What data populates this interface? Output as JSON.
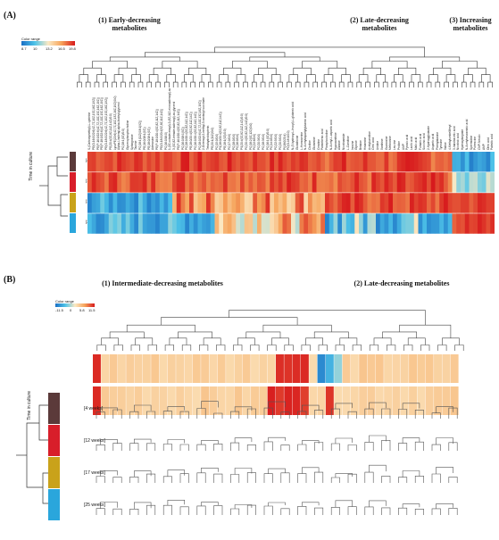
{
  "panelA": {
    "label": "(A)",
    "groups": [
      {
        "title": "(1) Early-decreasing metabolites"
      },
      {
        "title": "(2) Late-decreasing metabolites"
      },
      {
        "title": "(3) Increasing metabolites"
      }
    ],
    "color_range": {
      "title": "Color range",
      "ticks": [
        "8.7",
        "10",
        "13.2",
        "16.5",
        "19.8"
      ]
    },
    "time_title": "Time in culture",
    "rows": [
      "[4 weeks]",
      "[12 weeks]",
      "[17 weeks]",
      "[25 weeks]"
    ],
    "row_colors": [
      "#5b3a3a",
      "#d81e2a",
      "#c9a21a",
      "#2aa6dc"
    ],
    "metabolites": [
      "S-(Carboxymethyl)-L-cysteine",
      "PE(O-16:0/22:6(4Z,7Z,10Z,13Z,16Z,19Z))",
      "PE(P-16:0/22:6(4Z,7Z,10Z,13Z,16Z,19Z))",
      "PE(P-18:0/22:6(4Z,7Z,10Z,13Z,16Z,19Z))",
      "PE(O-18:0/22:6(4Z,7Z,10Z,13Z,16Z,19Z))",
      "PE(20:4(5Z,8Z,11Z,14Z)/0:0)",
      "LysoPE(22:6(4Z,7Z,10Z,13Z,16Z,19Z)/0:0)",
      "Alpha-Linolenyl-alpha-linoleyl-glycerol",
      "PC(18:1(9Z)/0:0)",
      "Glycerophosphocholine",
      "Sphingosine",
      "Taurine",
      "PC(18:1(11Z)/18:1(9Z))",
      "PE(16:0/18:1(9Z))",
      "PE(18:0/18:1(9Z))",
      "Adenosine",
      "PE(P-18:0/20:4(5Z,8Z,11Z,14Z))",
      "PE(O-18:0/20:4(5Z,8Z,11Z,14Z))",
      "PC(16:0/16:0)",
      "1-(9Z-octadecenoyl)-2-(8Z,11Z-eicosadienoyl)-sn",
      "3-(5Z,8Z-tetradecadienoyl)-sn-glycerol",
      "PE(P-16:0/20:4(5Z,8Z,11Z,14Z))",
      "PC(16:0/18:1(9Z))",
      "PC(18:0/20:4(5Z,8Z,11Z,14Z))",
      "PE(18:0/20:4(5Z,8Z,11Z,14Z))",
      "PC(16:0/20:4(5Z,8Z,11Z,14Z))",
      "PC(18:0/22:6(4Z,7Z,10Z,13Z,16Z,19Z))",
      "2-Octenoyl-2-methyl-3-oxobutyl succinate",
      "Tetrahydrobiopterin",
      "PE(20:1(11Z)/0:0)",
      "PC(15:0/0:0)",
      "PS(18:0/20:4(5Z,8Z,11Z,14Z))",
      "PE(18:1(9Z)/0:0)",
      "PC(17:0/0:0)",
      "PC(18:0/0:0)",
      "PC(16:0/0:0)",
      "PS(20:4(5Z,8Z,11Z,14Z)/0:0)",
      "PC(20:4(5Z,8Z,11Z,14Z)/0:0)",
      "PC(18:2(9Z,12Z)/0:0)",
      "PC(22:6/0:0)",
      "PC(20:3/0:0)",
      "PC(18:3/0:0)",
      "PC(16:1(9Z)/0:0)",
      "PC(14:0/0:0)",
      "PC(22:5/0:0)",
      "PC(20:5/0:0)",
      "PI(18:0/20:4)",
      "PC(O-18:1/0:0)",
      "N-(3-hydroxy-L-leucyl)-L-glutamic acid",
      "Glutathione",
      "L-Homoserine",
      "N-Acetylaspartylglutamic acid",
      "Choline",
      "Glutamine",
      "Creatine",
      "Pantothenic acid",
      "Phosphocholine",
      "N-Acetyl-L-aspartic acid",
      "Hypoxanthine",
      "Alanine",
      "Nicotinamide",
      "L-Carnitine",
      "Inosine",
      "Glycine",
      "Betaine",
      "Histamine",
      "Acetylcarnitine",
      "Citric acid",
      "Uridine",
      "Xanthine",
      "Guanosine",
      "Methionine",
      "Leucine",
      "Proline",
      "UMP",
      "Pyruvic acid",
      "Lactic acid",
      "Malic acid",
      "Fumaric acid",
      "Succinic acid",
      "2-Hydroxyglutarate",
      "Aspartic acid",
      "Phenylalanine",
      "Tyrosine",
      "Valine",
      "4-Methylumbelliferyl",
      "3-Indoleacetic acid",
      "Nicotinic acid",
      "Hydroxybutyrate",
      "N-Acetylneuraminic acid",
      "Spermidine",
      "Putrescine",
      "CMP-NeuAc",
      "AMP",
      "Oleic acid",
      "Palmitic acid"
    ]
  },
  "panelB": {
    "label": "(B)",
    "groups": [
      {
        "title": "(1) Intermediate-decreasing metabolites"
      },
      {
        "title": "(2) Late-decreasing metabolites"
      }
    ],
    "color_range": {
      "title": "Color range",
      "ticks": [
        "-11.5",
        "0",
        "5.8",
        "11.5"
      ]
    },
    "time_title": "Time in culture",
    "rows": [
      "[4 weeks]",
      "[12 weeks]",
      "[17 weeks]",
      "[25 weeks]"
    ],
    "row_colors": [
      "#5b3a3a",
      "#d81e2a",
      "#c9a21a",
      "#2aa6dc"
    ]
  },
  "colors": {
    "high": "#d7191c",
    "mid": "#fbe9c4",
    "low": "#1a6fc4"
  }
}
